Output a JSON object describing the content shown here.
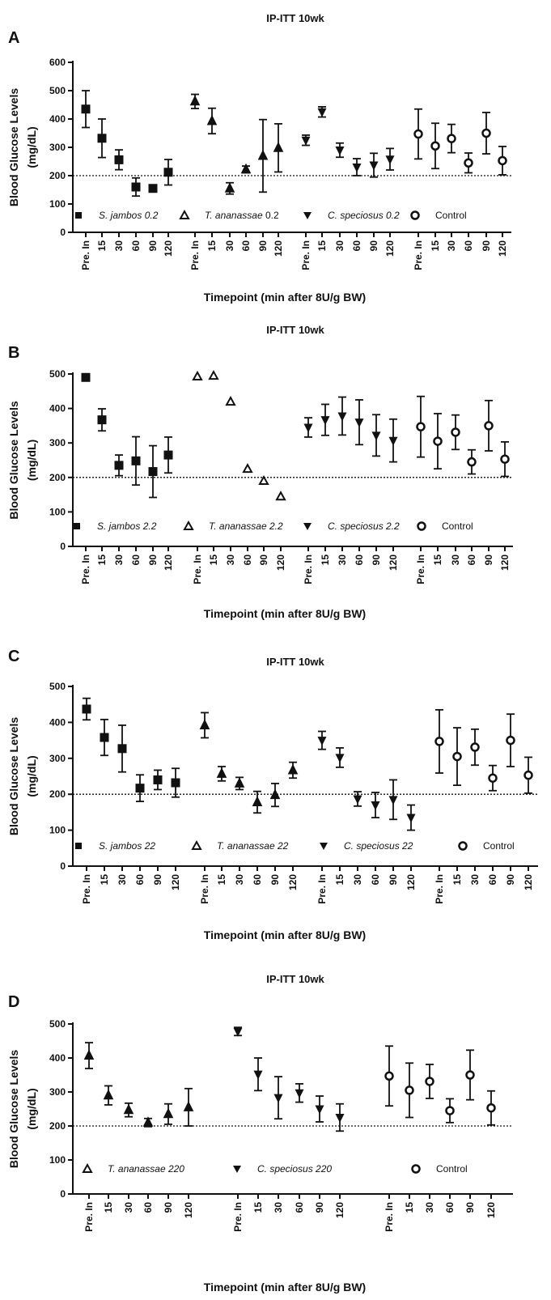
{
  "chart_data": [
    {
      "type": "scatter",
      "panel_label": "A",
      "title": "IP-ITT 10wk",
      "ylabel_line1": "Blood Glucose Levels",
      "ylabel_line2": "(mg/dL)",
      "xlabel": "Timepoint (min after 8U/g BW)",
      "ylim": [
        0,
        600
      ],
      "yticks": [
        0,
        100,
        200,
        300,
        400,
        500,
        600
      ],
      "reference_line": 200,
      "timepoints": [
        "Pre. In",
        "15",
        "30",
        "60",
        "90",
        "120"
      ],
      "series": [
        {
          "name": "S. jambos 0.2",
          "italic": true,
          "marker": "square",
          "values": [
            435,
            332,
            256,
            160,
            155,
            212
          ],
          "errors": [
            65,
            68,
            35,
            32,
            10,
            45
          ]
        },
        {
          "name": "T. ananassae 0.2",
          "italic_part": "T. ananassae",
          "marker": "triangle-up",
          "values": [
            462,
            393,
            155,
            222,
            270,
            298
          ],
          "errors": [
            25,
            45,
            20,
            12,
            128,
            85
          ]
        },
        {
          "name": "C. speciosus 0.2",
          "italic": true,
          "marker": "triangle-down",
          "values": [
            325,
            425,
            290,
            230,
            237,
            258
          ],
          "errors": [
            18,
            18,
            25,
            30,
            42,
            38
          ]
        },
        {
          "name": "Control",
          "italic": false,
          "marker": "circle",
          "values": [
            347,
            305,
            331,
            245,
            350,
            253
          ],
          "errors": [
            88,
            80,
            50,
            35,
            73,
            50
          ]
        }
      ]
    },
    {
      "type": "scatter",
      "panel_label": "B",
      "title": "IP-ITT 10wk",
      "ylabel_line1": "Blood Glucose Levels",
      "ylabel_line2": "(mg/dL)",
      "xlabel": "Timepoint (min after 8U/g BW)",
      "ylim": [
        0,
        500
      ],
      "yticks": [
        0,
        100,
        200,
        300,
        400,
        500
      ],
      "reference_line": 200,
      "timepoints": [
        "Pre. In",
        "15",
        "30",
        "60",
        "90",
        "120"
      ],
      "series": [
        {
          "name": "S. jambos 2.2",
          "italic": true,
          "marker": "square",
          "values": [
            490,
            367,
            235,
            248,
            217,
            265
          ],
          "errors": [
            5,
            32,
            30,
            70,
            75,
            52
          ]
        },
        {
          "name": "T. ananassae 2.2",
          "italic": true,
          "marker": "triangle-up",
          "values": [
            493,
            495,
            420,
            225,
            190,
            145
          ],
          "errors": [
            0,
            0,
            0,
            0,
            0,
            0
          ]
        },
        {
          "name": "C. speciosus 2.2",
          "italic": true,
          "marker": "triangle-down",
          "values": [
            345,
            367,
            378,
            360,
            322,
            307
          ],
          "errors": [
            28,
            45,
            55,
            65,
            60,
            62
          ]
        },
        {
          "name": "Control",
          "italic": false,
          "marker": "circle",
          "values": [
            347,
            305,
            331,
            245,
            350,
            253
          ],
          "errors": [
            88,
            80,
            50,
            35,
            73,
            50
          ]
        }
      ]
    },
    {
      "type": "scatter",
      "panel_label": "C",
      "title": "IP-ITT 10wk",
      "ylabel_line1": "Blood Glucose Levels",
      "ylabel_line2": "(mg/dL)",
      "xlabel": "Timepoint (min after 8U/g BW)",
      "ylim": [
        0,
        500
      ],
      "yticks": [
        0,
        100,
        200,
        300,
        400,
        500
      ],
      "reference_line": 200,
      "timepoints": [
        "Pre. In",
        "15",
        "30",
        "60",
        "90",
        "120"
      ],
      "series": [
        {
          "name": "S. jambos 22",
          "italic": true,
          "marker": "square",
          "values": [
            437,
            358,
            327,
            217,
            240,
            232
          ],
          "errors": [
            30,
            50,
            65,
            37,
            27,
            40
          ]
        },
        {
          "name": "T. ananassae 22",
          "italic": true,
          "marker": "triangle-up",
          "values": [
            392,
            257,
            230,
            178,
            198,
            267
          ],
          "errors": [
            35,
            20,
            17,
            30,
            32,
            22
          ]
        },
        {
          "name": "C. speciosus 22",
          "italic": true,
          "marker": "triangle-down",
          "values": [
            350,
            302,
            187,
            170,
            185,
            135
          ],
          "errors": [
            25,
            27,
            20,
            35,
            55,
            35
          ]
        },
        {
          "name": "Control",
          "italic": false,
          "marker": "circle",
          "values": [
            347,
            305,
            331,
            245,
            350,
            253
          ],
          "errors": [
            88,
            80,
            50,
            35,
            73,
            50
          ]
        }
      ]
    },
    {
      "type": "scatter",
      "panel_label": "D",
      "title": "IP-ITT 10wk",
      "ylabel_line1": "Blood Glucose Levels",
      "ylabel_line2": "(mg/dL)",
      "xlabel": "Timepoint (min after 8U/g BW)",
      "ylim": [
        0,
        500
      ],
      "yticks": [
        0,
        100,
        200,
        300,
        400,
        500
      ],
      "reference_line": 200,
      "timepoints": [
        "Pre. In",
        "15",
        "30",
        "60",
        "90",
        "120"
      ],
      "series": [
        {
          "name": "T. ananassae 220",
          "italic": true,
          "marker": "triangle-up",
          "values": [
            407,
            290,
            247,
            210,
            235,
            255
          ],
          "errors": [
            38,
            28,
            20,
            12,
            30,
            55
          ]
        },
        {
          "name": "C. speciosus 220",
          "italic": true,
          "marker": "triangle-down",
          "values": [
            478,
            352,
            283,
            297,
            250,
            225
          ],
          "errors": [
            12,
            48,
            62,
            27,
            38,
            40
          ]
        },
        {
          "name": "Control",
          "italic": false,
          "marker": "circle",
          "values": [
            347,
            305,
            331,
            245,
            350,
            253
          ],
          "errors": [
            88,
            80,
            50,
            35,
            73,
            50
          ]
        }
      ]
    }
  ]
}
